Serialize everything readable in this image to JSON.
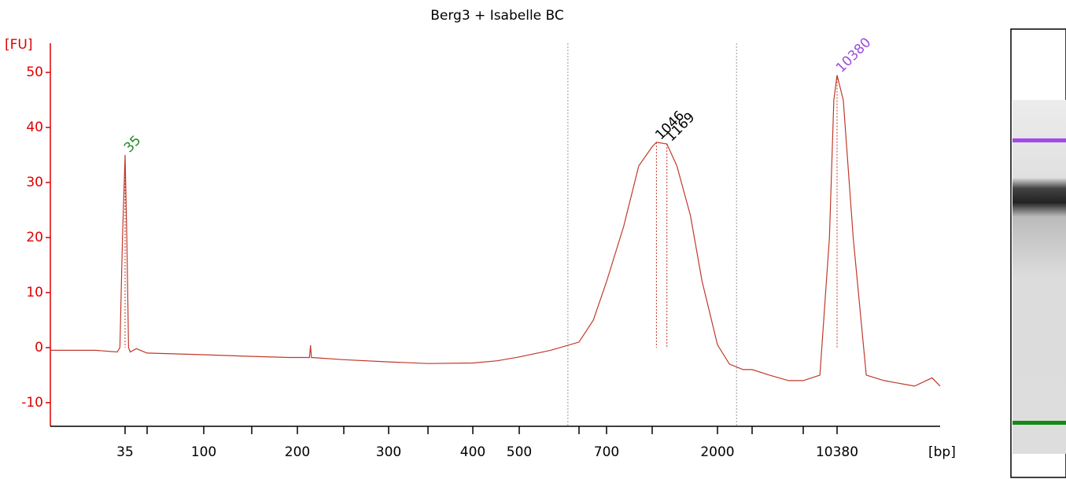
{
  "chart_data": {
    "type": "line",
    "title": "Berg3 + Isabelle BC",
    "y_label": "[FU]",
    "x_label": "[bp]",
    "ylim": [
      -14.3,
      55.3
    ],
    "yticks": [
      -10,
      0,
      10,
      20,
      30,
      40,
      50
    ],
    "xlim": [
      15,
      20000
    ],
    "xticks": [
      35,
      {
        "value": 50,
        "label": null
      },
      100,
      {
        "value": 150,
        "label": null
      },
      200,
      {
        "value": 250,
        "label": null
      },
      300,
      {
        "value": 350,
        "label": null
      },
      400,
      500,
      {
        "value": 600,
        "label": null
      },
      700,
      {
        "value": 1000,
        "label": null
      },
      2000,
      {
        "value": 3000,
        "label": null
      },
      {
        "value": 7000,
        "label": null
      },
      10380
    ],
    "axis_color": "#dd0000",
    "region": [
      580,
      2500
    ],
    "series": [
      {
        "color": "#c0392b",
        "x": [
          15,
          25,
          32,
          33,
          34,
          35,
          36,
          37,
          38,
          42,
          50,
          100,
          150,
          190,
          212,
          213,
          214,
          250,
          300,
          350,
          400,
          450,
          500,
          550,
          600,
          650,
          700,
          800,
          900,
          1000,
          1046,
          1169,
          1300,
          1500,
          1700,
          2000,
          2300,
          2700,
          3000,
          4000,
          5500,
          7000,
          8500,
          9500,
          10000,
          10380,
          10800,
          11500,
          12500,
          14000,
          17000,
          19000,
          20000
        ],
        "values": [
          -0.5,
          -0.5,
          -0.8,
          0,
          20,
          35,
          20,
          0,
          -0.8,
          -0.2,
          -1,
          -1.3,
          -1.6,
          -1.8,
          -1.8,
          0.4,
          -1.8,
          -2.2,
          -2.6,
          -2.9,
          -2.8,
          -2.4,
          -1.7,
          -0.5,
          1,
          5,
          12,
          22,
          33,
          36.5,
          37.3,
          37,
          33,
          24,
          12,
          0.5,
          -3,
          -4,
          -4,
          -5,
          -6,
          -6,
          -5,
          20,
          45,
          49.5,
          45,
          20,
          -5,
          -6,
          -7,
          -5.5,
          -7
        ]
      }
    ],
    "peaks": [
      {
        "bp": 35,
        "fu": 35,
        "color": "#1e8c1e"
      },
      {
        "bp": 1046,
        "fu": 37.3,
        "color": "#000000"
      },
      {
        "bp": 1169,
        "fu": 37,
        "color": "#000000"
      },
      {
        "bp": 10380,
        "fu": 49.5,
        "color": "#9b4ddb"
      }
    ]
  }
}
